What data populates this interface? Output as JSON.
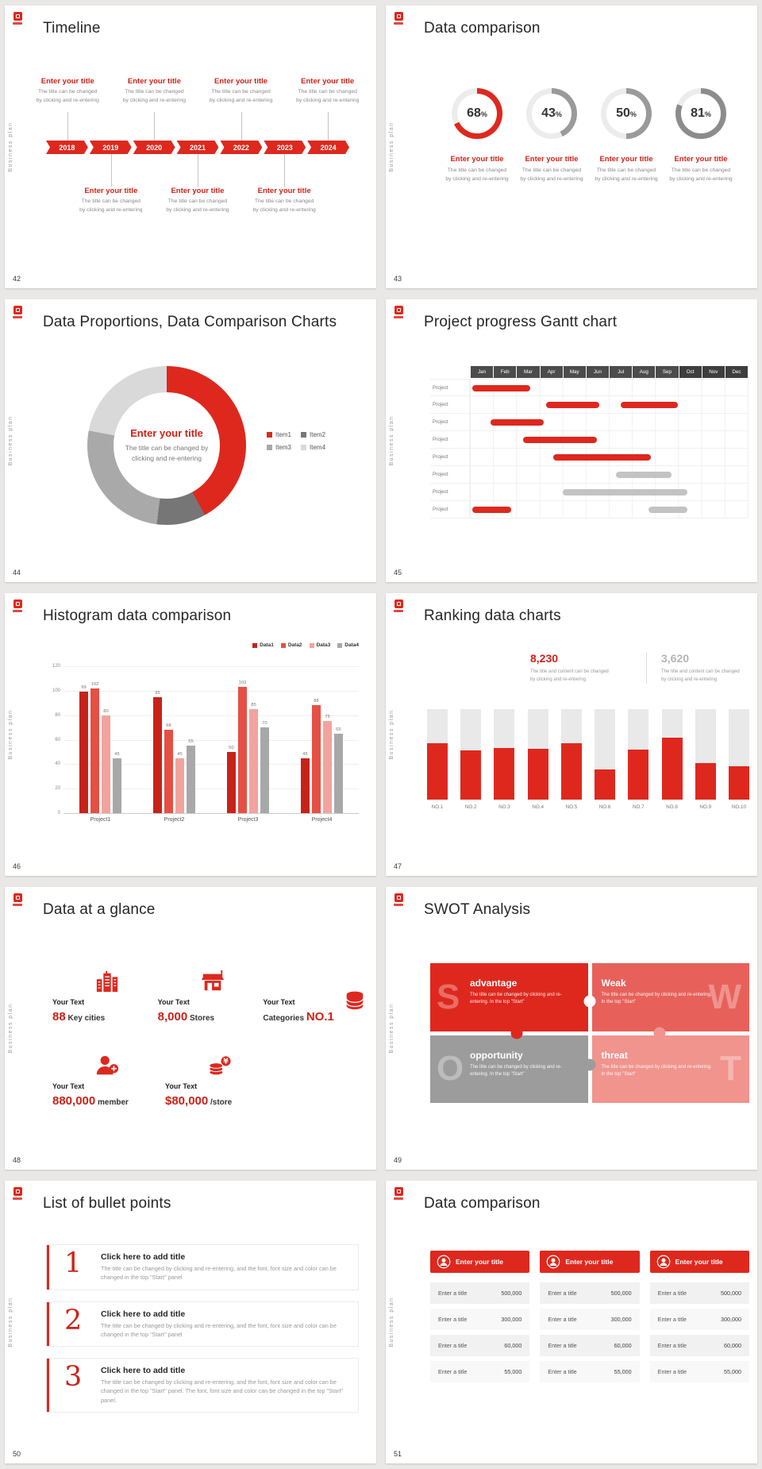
{
  "common": {
    "vertical_label": "Business plan",
    "accent_color": "#de281e"
  },
  "slides": {
    "timeline": {
      "number": "42",
      "title": "Timeline",
      "years": [
        "2018",
        "2019",
        "2020",
        "2021",
        "2022",
        "2023",
        "2024"
      ],
      "entry_title": "Enter your title",
      "entry_desc_lines": [
        "The title can be changed",
        "by clicking and re-entering"
      ],
      "top_slots": [
        "2018",
        "2020",
        "2022",
        "2024"
      ],
      "bottom_slots": [
        "2019",
        "2021",
        "2023"
      ]
    },
    "rings": {
      "number": "43",
      "title": "Data comparison",
      "entry_title": "Enter your title",
      "entry_desc_lines": [
        "The title can be changed",
        "by clicking and re-entering"
      ]
    },
    "donut": {
      "number": "44",
      "title": "Data Proportions, Data Comparison Charts",
      "center_title": "Enter your title",
      "center_desc_lines": [
        "The title can be changed by",
        "clicking and re-entering"
      ]
    },
    "gantt": {
      "number": "45",
      "title": "Project progress Gantt chart",
      "row_label": "Project"
    },
    "histogram": {
      "number": "46",
      "title": "Histogram data comparison"
    },
    "ranking": {
      "number": "47",
      "title": "Ranking data charts",
      "stat_primary": {
        "value": "8,230",
        "desc_lines": [
          "The title and content can be changed",
          "by clicking and re-entering"
        ]
      },
      "stat_secondary": {
        "value": "3,620",
        "desc_lines": [
          "The title and content can be changed",
          "by clicking and re-entering"
        ]
      }
    },
    "glance": {
      "number": "48",
      "title": "Data at a glance",
      "items": [
        {
          "label": "Your Text",
          "value": "88",
          "suffix": "Key cities",
          "icon": "city-buildings-icon"
        },
        {
          "label": "Your Text",
          "value": "8,000",
          "suffix": "Stores",
          "icon": "store-icon"
        },
        {
          "label": "Your Text",
          "prefix": "Categories",
          "value": "NO.1",
          "icon": "category-cylinder-icon"
        },
        {
          "label": "Your Text",
          "value": "880,000",
          "suffix": "member",
          "icon": "member-person-icon"
        },
        {
          "label": "Your Text",
          "value": "$80,000",
          "suffix": "/store",
          "icon": "coins-icon"
        }
      ]
    },
    "swot": {
      "number": "49",
      "title": "SWOT Analysis",
      "pieces": [
        {
          "letter": "S",
          "word": "advantage",
          "desc": "The title can be changed by clicking and re-entering. In the top \"Start\"",
          "color": "#de281e",
          "letter_side": "left"
        },
        {
          "letter": "W",
          "word": "Weak",
          "desc": "The title can be changed by clicking and re-entering. In the top \"Start\"",
          "color": "#e7615a",
          "letter_side": "right"
        },
        {
          "letter": "O",
          "word": "opportunity",
          "desc": "The title can be changed by clicking and re-entering. In the top \"Start\"",
          "color": "#9c9c9c",
          "letter_side": "left"
        },
        {
          "letter": "T",
          "word": "threat",
          "desc": "The title can be changed by clicking and re-entering. In the top \"Start\"",
          "color": "#f0948d",
          "letter_side": "right"
        }
      ]
    },
    "bullets": {
      "number": "50",
      "title": "List of bullet points",
      "items": [
        {
          "num": "1",
          "heading": "Click here to add title",
          "desc": "The title can be changed by clicking and re-entering, and the font, font size and color can be changed in the top \"Start\" panel"
        },
        {
          "num": "2",
          "heading": "Click here to add title",
          "desc": "The title can be changed by clicking and re-entering, and the font, font size and color can be changed in the top \"Start\" panel"
        },
        {
          "num": "3",
          "heading": "Click here to add title",
          "desc": "The title can be changed by clicking and re-entering, and the font, font size and color can be changed in the top \"Start\" panel. The font, font size and color can be changed in the top \"Start\" panel."
        }
      ]
    },
    "tables": {
      "number": "51",
      "title": "Data comparison",
      "header_title": "Enter your title",
      "header_icon": "user-badge-icon",
      "row_label": "Enter a title",
      "row_values": [
        "500,000",
        "300,000",
        "60,000",
        "55,000"
      ],
      "table_count": 3
    }
  },
  "chart_data": [
    {
      "id": "rings",
      "slide": "43",
      "type": "donut-progress",
      "values": [
        68,
        43,
        50,
        81
      ],
      "unit": "%",
      "colors": [
        "#de281e",
        "#9a9a9a",
        "#9a9a9a",
        "#8c8c8c"
      ],
      "track_color": "#ececec"
    },
    {
      "id": "pie",
      "slide": "44",
      "type": "pie",
      "labels": [
        "Item1",
        "Item2",
        "Item3",
        "Item4"
      ],
      "values": [
        42,
        10,
        26,
        22
      ],
      "colors": [
        "#de281e",
        "#767676",
        "#a9a9a9",
        "#d9d9d9"
      ],
      "legend_position": "right"
    },
    {
      "id": "gantt",
      "slide": "45",
      "type": "gantt",
      "columns": [
        "Jan",
        "Feb",
        "Mar",
        "Apr",
        "May",
        "Jun",
        "Jul",
        "Aug",
        "Sep",
        "Oct",
        "Nov",
        "Dec"
      ],
      "bar_colors": {
        "red": "#de281e",
        "gray": "#c3c3c3"
      },
      "rows": [
        {
          "label": "Project",
          "bars": [
            {
              "start": 0.1,
              "end": 2.6,
              "color": "red"
            }
          ]
        },
        {
          "label": "Project",
          "bars": [
            {
              "start": 3.3,
              "end": 5.6,
              "color": "red"
            },
            {
              "start": 6.5,
              "end": 9.0,
              "color": "red"
            }
          ]
        },
        {
          "label": "Project",
          "bars": [
            {
              "start": 0.9,
              "end": 3.2,
              "color": "red"
            }
          ]
        },
        {
          "label": "Project",
          "bars": [
            {
              "start": 2.3,
              "end": 5.5,
              "color": "red"
            }
          ]
        },
        {
          "label": "Project",
          "bars": [
            {
              "start": 3.6,
              "end": 7.8,
              "color": "red"
            }
          ]
        },
        {
          "label": "Project",
          "bars": [
            {
              "start": 6.3,
              "end": 8.7,
              "color": "gray"
            }
          ]
        },
        {
          "label": "Project",
          "bars": [
            {
              "start": 4.0,
              "end": 9.4,
              "color": "gray"
            }
          ]
        },
        {
          "label": "Project",
          "bars": [
            {
              "start": 0.1,
              "end": 1.8,
              "color": "red"
            },
            {
              "start": 7.7,
              "end": 9.4,
              "color": "gray"
            }
          ]
        }
      ]
    },
    {
      "id": "histogram",
      "slide": "46",
      "type": "bar",
      "categories": [
        "Project1",
        "Project2",
        "Project3",
        "Project4"
      ],
      "series": [
        {
          "name": "Data1",
          "color": "#c6221a",
          "values": [
            99,
            95,
            50,
            45
          ]
        },
        {
          "name": "Data2",
          "color": "#e64f44",
          "values": [
            102,
            68,
            103,
            88
          ]
        },
        {
          "name": "Data3",
          "color": "#f2a39d",
          "values": [
            80,
            45,
            85,
            75
          ]
        },
        {
          "name": "Data4",
          "color": "#a8a8a8",
          "values": [
            45,
            55,
            70,
            65
          ]
        }
      ],
      "ylim": [
        0,
        120
      ],
      "yticks": [
        0,
        20,
        40,
        60,
        80,
        100,
        120
      ]
    },
    {
      "id": "ranking",
      "slide": "47",
      "type": "bar",
      "categories": [
        "NO.1",
        "NO.2",
        "NO.3",
        "NO.4",
        "NO.5",
        "NO.6",
        "NO.7",
        "NO.8",
        "NO.9",
        "NO.10"
      ],
      "values": [
        62,
        54,
        57,
        56,
        62,
        33,
        55,
        68,
        40,
        37
      ],
      "max": 100,
      "bar_color": "#de281e",
      "track_color": "#e9e9e9"
    }
  ]
}
